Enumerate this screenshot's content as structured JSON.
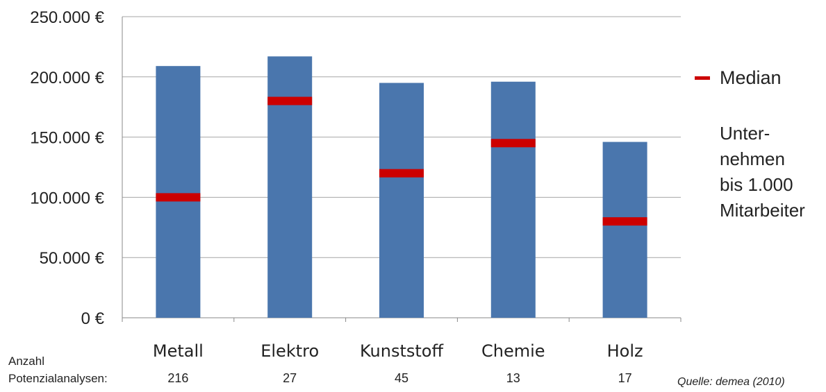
{
  "chart_data": {
    "type": "bar",
    "categories": [
      "Metall",
      "Elektro",
      "Kunststoff",
      "Chemie",
      "Holz"
    ],
    "series": [
      {
        "values": [
          209000,
          217000,
          195000,
          196000,
          146000
        ]
      },
      {
        "name": "Median",
        "values": [
          100000,
          180000,
          120000,
          145000,
          80000
        ]
      }
    ],
    "y_ticks": [
      "0 €",
      "50.000 €",
      "100.000 €",
      "150.000 €",
      "200.000 €",
      "250.000 €"
    ],
    "ylim": [
      0,
      250000
    ],
    "grid": true,
    "legend_position": "right",
    "colors": {
      "bar": "#4a76ad",
      "median": "#cc0000",
      "grid": "#a6a6a6",
      "axis": "#888888"
    }
  },
  "legend": {
    "median_label": "Median"
  },
  "note": "Unter-\nnehmen\nbis 1.000\nMitarbeiter",
  "counts": {
    "label": "Anzahl\nPotenzialanalysen:",
    "values": [
      "216",
      "27",
      "45",
      "13",
      "17"
    ]
  },
  "source": "Quelle: demea (2010)"
}
